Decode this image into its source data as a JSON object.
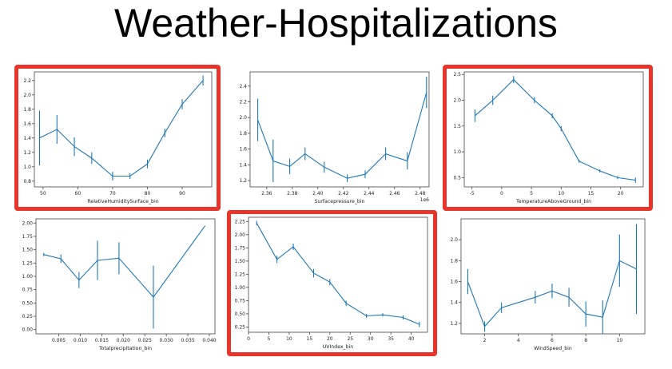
{
  "page": {
    "title": "Weather-Hospitalizations"
  },
  "colors": {
    "line": "#1f77b4",
    "highlight": "#e8352b",
    "axis": "#444444"
  },
  "chart_data": [
    {
      "type": "line",
      "highlighted": true,
      "xlabel": "RelativeHumiditySurface_bin",
      "xlim": [
        47.5,
        98.5
      ],
      "ylim": [
        0.72,
        2.32
      ],
      "xticks": [
        50,
        60,
        70,
        80,
        90
      ],
      "xtick_labels": [
        "50",
        "60",
        "70",
        "80",
        "90"
      ],
      "yticks": [
        0.8,
        1.0,
        1.2,
        1.4,
        1.6,
        1.8,
        2.0,
        2.2
      ],
      "ytick_labels": [
        "0.8",
        "1.0",
        "1.2",
        "1.4",
        "1.6",
        "1.8",
        "2.0",
        "2.2"
      ],
      "offset_label": "",
      "x": [
        49,
        54,
        59,
        64,
        70,
        75,
        80,
        85,
        90,
        96
      ],
      "y": [
        1.4,
        1.52,
        1.28,
        1.12,
        0.87,
        0.87,
        1.04,
        1.47,
        1.87,
        2.2
      ],
      "err": [
        0.38,
        0.2,
        0.13,
        0.08,
        0.06,
        0.04,
        0.06,
        0.06,
        0.07,
        0.07
      ]
    },
    {
      "type": "line",
      "highlighted": false,
      "xlabel": "Surfacepressure_bin",
      "xlim": [
        2.347,
        2.487
      ],
      "ylim": [
        1.12,
        2.58
      ],
      "xticks": [
        2.36,
        2.38,
        2.4,
        2.42,
        2.44,
        2.46,
        2.48
      ],
      "xtick_labels": [
        "2.36",
        "2.38",
        "2.40",
        "2.42",
        "2.44",
        "2.46",
        "2.48"
      ],
      "yticks": [
        1.2,
        1.4,
        1.6,
        1.8,
        2.0,
        2.2,
        2.4
      ],
      "ytick_labels": [
        "1.2",
        "1.4",
        "1.6",
        "1.8",
        "2.0",
        "2.2",
        "2.4"
      ],
      "offset_label": "1e6",
      "x": [
        2.353,
        2.365,
        2.378,
        2.39,
        2.405,
        2.423,
        2.437,
        2.453,
        2.47,
        2.485
      ],
      "y": [
        1.97,
        1.45,
        1.38,
        1.54,
        1.37,
        1.23,
        1.28,
        1.54,
        1.45,
        2.32
      ],
      "err": [
        0.27,
        0.27,
        0.1,
        0.08,
        0.07,
        0.05,
        0.05,
        0.08,
        0.11,
        0.2
      ]
    },
    {
      "type": "line",
      "highlighted": true,
      "xlabel": "TemperatureAboveGround_bin",
      "xlim": [
        -6.3,
        23.8
      ],
      "ylim": [
        0.32,
        2.55
      ],
      "xticks": [
        -5,
        0,
        5,
        10,
        15,
        20
      ],
      "xtick_labels": [
        "-5",
        "0",
        "5",
        "10",
        "15",
        "20"
      ],
      "yticks": [
        0.5,
        1.0,
        1.5,
        2.0,
        2.5
      ],
      "ytick_labels": [
        "0.5",
        "1.0",
        "1.5",
        "2.0",
        "2.5"
      ],
      "offset_label": "",
      "x": [
        -4.5,
        -1.5,
        2.0,
        5.5,
        8.5,
        10.0,
        13.0,
        16.5,
        19.5,
        22.5
      ],
      "y": [
        1.7,
        2.0,
        2.4,
        2.0,
        1.7,
        1.45,
        0.82,
        0.63,
        0.5,
        0.45
      ],
      "err": [
        0.12,
        0.09,
        0.07,
        0.06,
        0.05,
        0.05,
        0.03,
        0.03,
        0.03,
        0.05
      ]
    },
    {
      "type": "line",
      "highlighted": false,
      "xlabel": "Totalprecipitation_bin",
      "xlim": [
        -0.0003,
        0.0413
      ],
      "ylim": [
        -0.08,
        2.08
      ],
      "xticks": [
        0.005,
        0.01,
        0.015,
        0.02,
        0.025,
        0.03,
        0.035,
        0.04
      ],
      "xtick_labels": [
        "0.005",
        "0.010",
        "0.015",
        "0.020",
        "0.025",
        "0.030",
        "0.035",
        "0.040"
      ],
      "yticks": [
        0.0,
        0.25,
        0.5,
        0.75,
        1.0,
        1.25,
        1.5,
        1.75,
        2.0
      ],
      "ytick_labels": [
        "0.00",
        "0.25",
        "0.50",
        "0.75",
        "1.00",
        "1.25",
        "1.50",
        "1.75",
        "2.00"
      ],
      "offset_label": "",
      "x": [
        0.0015,
        0.0055,
        0.0097,
        0.014,
        0.019,
        0.027,
        0.039
      ],
      "y": [
        1.41,
        1.33,
        0.93,
        1.3,
        1.34,
        0.61,
        1.95
      ],
      "err": [
        0.03,
        0.08,
        0.15,
        0.37,
        0.3,
        0.59,
        0.0
      ]
    },
    {
      "type": "line",
      "highlighted": true,
      "xlabel": "UVIndex_bin",
      "xlim": [
        0,
        44
      ],
      "ylim": [
        0.15,
        2.33
      ],
      "xticks": [
        0,
        5,
        10,
        15,
        20,
        25,
        30,
        35,
        40
      ],
      "xtick_labels": [
        "0",
        "5",
        "10",
        "15",
        "20",
        "25",
        "30",
        "35",
        "40"
      ],
      "yticks": [
        0.25,
        0.5,
        0.75,
        1.0,
        1.25,
        1.5,
        1.75,
        2.0,
        2.25
      ],
      "ytick_labels": [
        "0.25",
        "0.50",
        "0.75",
        "1.00",
        "1.25",
        "1.50",
        "1.75",
        "2.00",
        "2.25"
      ],
      "offset_label": "",
      "x": [
        2,
        7,
        11,
        16,
        20,
        24,
        29,
        33,
        38,
        42
      ],
      "y": [
        2.22,
        1.53,
        1.77,
        1.27,
        1.1,
        0.7,
        0.46,
        0.48,
        0.43,
        0.3
      ],
      "err": [
        0.04,
        0.07,
        0.06,
        0.08,
        0.06,
        0.05,
        0.04,
        0.03,
        0.04,
        0.05
      ]
    },
    {
      "type": "line",
      "highlighted": false,
      "xlabel": "WindSpeed_bin",
      "xlim": [
        0.6,
        11.5
      ],
      "ylim": [
        1.1,
        2.2
      ],
      "xticks": [
        2,
        4,
        6,
        8,
        10
      ],
      "xtick_labels": [
        "2",
        "4",
        "6",
        "8",
        "10"
      ],
      "yticks": [
        1.2,
        1.4,
        1.6,
        1.8,
        2.0
      ],
      "ytick_labels": [
        "1.2",
        "1.4",
        "1.6",
        "1.8",
        "2.0"
      ],
      "offset_label": "",
      "x": [
        1,
        2,
        3,
        5,
        6,
        7,
        8,
        9,
        10,
        11
      ],
      "y": [
        1.6,
        1.17,
        1.35,
        1.45,
        1.51,
        1.45,
        1.29,
        1.26,
        1.8,
        1.72
      ],
      "err": [
        0.12,
        0.05,
        0.05,
        0.06,
        0.07,
        0.09,
        0.12,
        0.16,
        0.25,
        0.43
      ]
    }
  ]
}
